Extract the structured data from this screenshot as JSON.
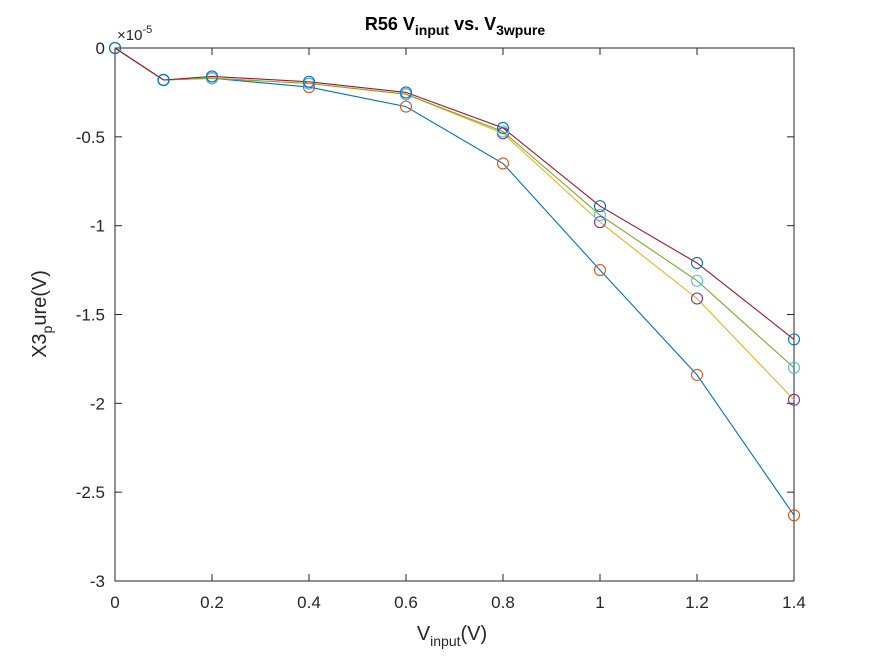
{
  "chart_data": {
    "type": "line",
    "title": {
      "main": "R56 V",
      "sub1": "input",
      "mid": " vs. V",
      "sub2": "3wpure"
    },
    "xlabel": {
      "main": "V",
      "sub": "input",
      "tail": "(V)"
    },
    "ylabel": {
      "main": "X3",
      "sub": "p",
      "tail": "ure(V)"
    },
    "y_exponent": {
      "base": "×10",
      "power": "-5"
    },
    "xlim": [
      0,
      1.4
    ],
    "ylim": [
      -3,
      0
    ],
    "xticks": [
      0,
      0.2,
      0.4,
      0.6,
      0.8,
      1,
      1.2,
      1.4
    ],
    "xtick_labels": [
      "0",
      "0.2",
      "0.4",
      "0.6",
      "0.8",
      "1",
      "1.2",
      "1.4"
    ],
    "yticks": [
      -3,
      -2.5,
      -2,
      -1.5,
      -1,
      -0.5,
      0
    ],
    "ytick_labels": [
      "-3",
      "-2.5",
      "-2",
      "-1.5",
      "-1",
      "-0.5",
      "0"
    ],
    "grid": false,
    "x": [
      0,
      0.1,
      0.2,
      0.4,
      0.6,
      0.8,
      1.0,
      1.2,
      1.4
    ],
    "series": [
      {
        "color": "#0072BD",
        "marker_color": "#D95319",
        "values": [
          0,
          -0.18,
          -0.17,
          -0.22,
          -0.33,
          -0.65,
          -1.25,
          -1.84,
          -2.63
        ]
      },
      {
        "color": "#EDB120",
        "marker_color": "#7E2F8E",
        "values": [
          0,
          -0.18,
          -0.17,
          -0.2,
          -0.26,
          -0.48,
          -0.98,
          -1.41,
          -1.98
        ]
      },
      {
        "color": "#77AC30",
        "marker_color": "#4DBEEE",
        "values": [
          0,
          -0.18,
          -0.17,
          -0.2,
          -0.26,
          -0.47,
          -0.94,
          -1.31,
          -1.8
        ]
      },
      {
        "color": "#A2142F",
        "marker_color": "#0072BD",
        "values": [
          0,
          -0.18,
          -0.16,
          -0.19,
          -0.25,
          -0.45,
          -0.89,
          -1.21,
          -1.64
        ]
      }
    ]
  }
}
